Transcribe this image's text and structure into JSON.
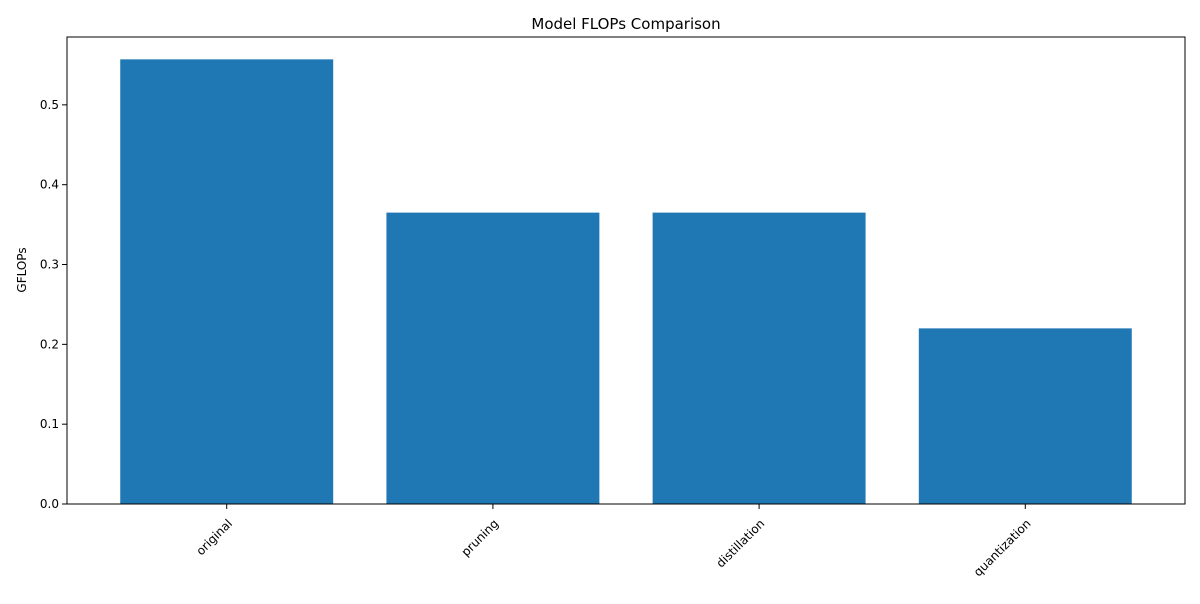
{
  "chart_data": {
    "type": "bar",
    "title": "Model FLOPs Comparison",
    "xlabel": "",
    "ylabel": "GFLOPs",
    "categories": [
      "original",
      "pruning",
      "distillation",
      "quantization"
    ],
    "values": [
      0.557,
      0.365,
      0.365,
      0.22
    ],
    "ylim": [
      0,
      0.585
    ],
    "yticks": [
      0.0,
      0.1,
      0.2,
      0.3,
      0.4,
      0.5
    ],
    "ytick_labels": [
      "0.0",
      "0.1",
      "0.2",
      "0.3",
      "0.4",
      "0.5"
    ],
    "bar_color": "#1f77b4",
    "grid": false,
    "legend": "none"
  }
}
